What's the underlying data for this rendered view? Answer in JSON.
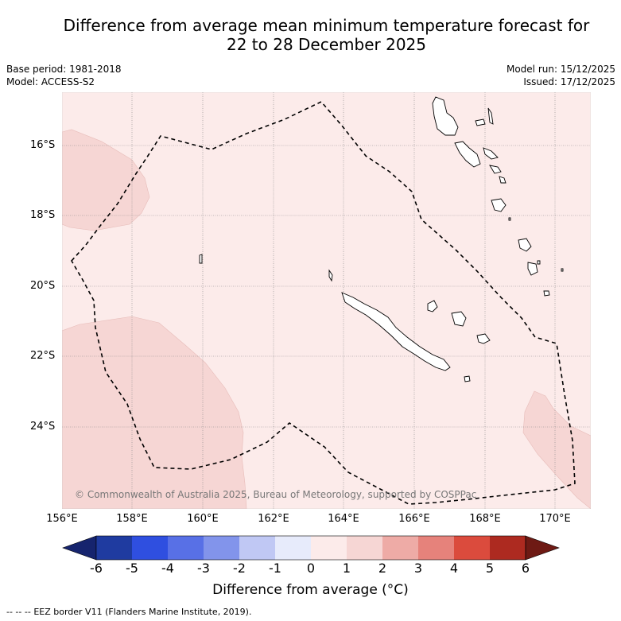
{
  "title": {
    "line1": "Difference from average mean minimum temperature forecast for",
    "line2": "22 to 28 December 2025"
  },
  "meta": {
    "base_period": "Base period: 1981-2018",
    "model": "Model: ACCESS-S2",
    "model_run": "Model run: 15/12/2025",
    "issued": "Issued: 17/12/2025"
  },
  "map": {
    "lat_labels": [
      "16°S",
      "18°S",
      "20°S",
      "22°S",
      "24°S"
    ],
    "lon_labels": [
      "156°E",
      "158°E",
      "160°E",
      "162°E",
      "164°E",
      "166°E",
      "168°E",
      "170°E"
    ],
    "copyright": "© Commonwealth of Australia 2025, Bureau of Meteorology, supported by COSPPac",
    "background_anomaly_color": "#fcebea",
    "warm_anomaly_color": "#f6d6d4"
  },
  "colorbar": {
    "labels": [
      "-6",
      "-5",
      "-4",
      "-3",
      "-2",
      "-1",
      "0",
      "1",
      "2",
      "3",
      "4",
      "5",
      "6"
    ],
    "colors": [
      "#1f3ba0",
      "#2f4fe0",
      "#5870e6",
      "#8294eb",
      "#c0c8f4",
      "#e7ebfb",
      "#fcebea",
      "#f6d6d4",
      "#eeaba6",
      "#e6827b",
      "#db4b3d",
      "#ad2a20"
    ],
    "low_extend_color": "#16246e",
    "high_extend_color": "#6e1a14",
    "title": "Difference from average (°C)"
  },
  "footer": {
    "legend_marker": "-- -- --",
    "legend_text": "EEZ border V11 (Flanders Marine Institute, 2019)."
  }
}
